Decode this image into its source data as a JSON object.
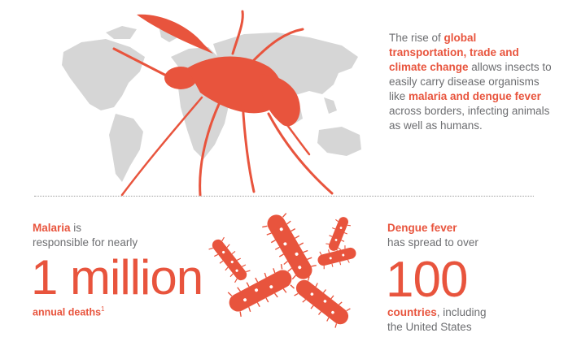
{
  "colors": {
    "accent": "#e8543d",
    "text": "#6d6e71",
    "map": "#d5d5d5"
  },
  "icons": [
    "world-map-icon",
    "mosquito-icon",
    "bacteria-icon"
  ],
  "intro": {
    "pre": "The rise of ",
    "em1": "global transportation, trade and climate change",
    "mid": " allows insects to easily carry disease organisms like ",
    "em2": "malaria and dengue fever",
    "post": " across borders, infecting animals as well as humans."
  },
  "malaria": {
    "name": "Malaria",
    "text1": " is",
    "text2": "responsible for nearly",
    "big": "1 million",
    "caption": "annual deaths",
    "footnote": "1"
  },
  "dengue": {
    "name": "Dengue fever",
    "text1": "has spread to over",
    "big": "100",
    "caption": "countries",
    "text2": ", including",
    "text3": "the United States"
  }
}
